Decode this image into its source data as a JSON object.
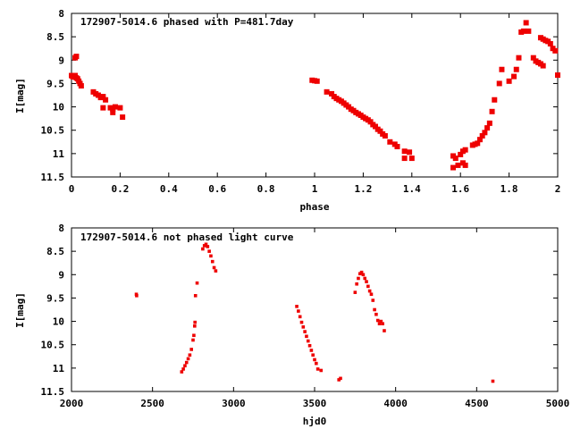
{
  "chart_data": [
    {
      "type": "scatter",
      "title": "172907-5014.6 phased with P=481.7day",
      "xlabel": "phase",
      "ylabel": "I[mag]",
      "xlim": [
        0,
        2
      ],
      "ylim": [
        11.5,
        8
      ],
      "y_inverted": true,
      "xticks": [
        "0",
        "0.2",
        "0.4",
        "0.6",
        "0.8",
        "1",
        "1.2",
        "1.4",
        "1.6",
        "1.8",
        "2"
      ],
      "yticks": [
        "8",
        "8.5",
        "9",
        "9.5",
        "10",
        "10.5",
        "11",
        "11.5"
      ],
      "marker_color": "#ee0000",
      "marker_size": "large",
      "grid": false,
      "legend": "none",
      "points": [
        [
          0.0,
          9.33
        ],
        [
          0.005,
          9.35
        ],
        [
          0.01,
          9.36
        ],
        [
          0.015,
          9.33
        ],
        [
          0.02,
          9.38
        ],
        [
          0.025,
          9.4
        ],
        [
          0.03,
          9.45
        ],
        [
          0.035,
          9.5
        ],
        [
          0.04,
          9.55
        ],
        [
          0.015,
          8.95
        ],
        [
          0.02,
          8.92
        ],
        [
          0.09,
          9.68
        ],
        [
          0.1,
          9.72
        ],
        [
          0.11,
          9.75
        ],
        [
          0.12,
          9.8
        ],
        [
          0.13,
          9.78
        ],
        [
          0.14,
          9.85
        ],
        [
          0.13,
          10.02
        ],
        [
          0.16,
          10.02
        ],
        [
          0.17,
          10.05
        ],
        [
          0.18,
          10.0
        ],
        [
          0.17,
          10.12
        ],
        [
          0.2,
          10.02
        ],
        [
          0.21,
          10.22
        ],
        [
          0.99,
          9.43
        ],
        [
          1.0,
          9.44
        ],
        [
          1.01,
          9.45
        ],
        [
          1.05,
          9.68
        ],
        [
          1.07,
          9.72
        ],
        [
          1.08,
          9.78
        ],
        [
          1.09,
          9.82
        ],
        [
          1.1,
          9.85
        ],
        [
          1.11,
          9.88
        ],
        [
          1.12,
          9.92
        ],
        [
          1.13,
          9.96
        ],
        [
          1.14,
          10.0
        ],
        [
          1.15,
          10.05
        ],
        [
          1.16,
          10.08
        ],
        [
          1.17,
          10.12
        ],
        [
          1.18,
          10.15
        ],
        [
          1.19,
          10.18
        ],
        [
          1.2,
          10.22
        ],
        [
          1.21,
          10.25
        ],
        [
          1.22,
          10.28
        ],
        [
          1.23,
          10.32
        ],
        [
          1.24,
          10.38
        ],
        [
          1.25,
          10.42
        ],
        [
          1.26,
          10.48
        ],
        [
          1.27,
          10.52
        ],
        [
          1.28,
          10.58
        ],
        [
          1.29,
          10.62
        ],
        [
          1.31,
          10.75
        ],
        [
          1.33,
          10.8
        ],
        [
          1.34,
          10.85
        ],
        [
          1.37,
          10.95
        ],
        [
          1.37,
          11.1
        ],
        [
          1.39,
          10.97
        ],
        [
          1.4,
          11.1
        ],
        [
          1.57,
          11.05
        ],
        [
          1.58,
          11.1
        ],
        [
          1.57,
          11.3
        ],
        [
          1.59,
          11.25
        ],
        [
          1.6,
          11.02
        ],
        [
          1.61,
          10.95
        ],
        [
          1.62,
          10.92
        ],
        [
          1.61,
          11.2
        ],
        [
          1.62,
          11.25
        ],
        [
          1.65,
          10.82
        ],
        [
          1.66,
          10.8
        ],
        [
          1.67,
          10.78
        ],
        [
          1.68,
          10.7
        ],
        [
          1.69,
          10.62
        ],
        [
          1.7,
          10.55
        ],
        [
          1.71,
          10.45
        ],
        [
          1.72,
          10.35
        ],
        [
          1.73,
          10.1
        ],
        [
          1.74,
          9.85
        ],
        [
          1.76,
          9.5
        ],
        [
          1.77,
          9.2
        ],
        [
          1.8,
          9.45
        ],
        [
          1.82,
          9.35
        ],
        [
          1.83,
          9.2
        ],
        [
          1.84,
          8.95
        ],
        [
          1.85,
          8.4
        ],
        [
          1.86,
          8.38
        ],
        [
          1.87,
          8.2
        ],
        [
          1.88,
          8.38
        ],
        [
          1.9,
          8.95
        ],
        [
          1.91,
          9.02
        ],
        [
          1.92,
          9.05
        ],
        [
          1.93,
          9.08
        ],
        [
          1.94,
          9.12
        ],
        [
          1.93,
          8.52
        ],
        [
          1.94,
          8.55
        ],
        [
          1.95,
          8.58
        ],
        [
          1.96,
          8.6
        ],
        [
          1.97,
          8.65
        ],
        [
          1.98,
          8.75
        ],
        [
          1.99,
          8.8
        ],
        [
          2.0,
          9.32
        ]
      ]
    },
    {
      "type": "scatter",
      "title": "172907-5014.6 not phased light curve",
      "xlabel": "hjd0",
      "ylabel": "I[mag]",
      "xlim": [
        2000,
        5000
      ],
      "ylim": [
        11.5,
        8
      ],
      "y_inverted": true,
      "xticks": [
        "2000",
        "2500",
        "3000",
        "3500",
        "4000",
        "4500",
        "5000"
      ],
      "yticks": [
        "8",
        "8.5",
        "9",
        "9.5",
        "10",
        "10.5",
        "11",
        "11.5"
      ],
      "marker_color": "#ee0000",
      "marker_size": "small",
      "grid": false,
      "legend": "none",
      "points": [
        [
          2400,
          9.42
        ],
        [
          2402,
          9.45
        ],
        [
          2680,
          11.08
        ],
        [
          2690,
          11.02
        ],
        [
          2700,
          10.95
        ],
        [
          2710,
          10.88
        ],
        [
          2720,
          10.8
        ],
        [
          2730,
          10.72
        ],
        [
          2740,
          10.6
        ],
        [
          2750,
          10.4
        ],
        [
          2755,
          10.3
        ],
        [
          2760,
          10.1
        ],
        [
          2762,
          10.02
        ],
        [
          2765,
          9.45
        ],
        [
          2775,
          9.18
        ],
        [
          2810,
          8.45
        ],
        [
          2820,
          8.38
        ],
        [
          2830,
          8.35
        ],
        [
          2840,
          8.4
        ],
        [
          2850,
          8.5
        ],
        [
          2860,
          8.6
        ],
        [
          2870,
          8.72
        ],
        [
          2880,
          8.85
        ],
        [
          2890,
          8.92
        ],
        [
          3390,
          9.68
        ],
        [
          3400,
          9.78
        ],
        [
          3410,
          9.9
        ],
        [
          3420,
          10.02
        ],
        [
          3430,
          10.12
        ],
        [
          3440,
          10.22
        ],
        [
          3450,
          10.32
        ],
        [
          3460,
          10.42
        ],
        [
          3470,
          10.52
        ],
        [
          3480,
          10.62
        ],
        [
          3490,
          10.72
        ],
        [
          3500,
          10.82
        ],
        [
          3510,
          10.9
        ],
        [
          3520,
          11.02
        ],
        [
          3540,
          11.05
        ],
        [
          3650,
          11.25
        ],
        [
          3660,
          11.22
        ],
        [
          3750,
          9.38
        ],
        [
          3760,
          9.2
        ],
        [
          3770,
          9.08
        ],
        [
          3780,
          8.98
        ],
        [
          3790,
          8.95
        ],
        [
          3800,
          9.0
        ],
        [
          3810,
          9.08
        ],
        [
          3820,
          9.15
        ],
        [
          3830,
          9.25
        ],
        [
          3840,
          9.35
        ],
        [
          3850,
          9.42
        ],
        [
          3860,
          9.55
        ],
        [
          3870,
          9.75
        ],
        [
          3880,
          9.85
        ],
        [
          3890,
          9.98
        ],
        [
          3900,
          10.05
        ],
        [
          3910,
          10.0
        ],
        [
          3920,
          10.05
        ],
        [
          3930,
          10.2
        ],
        [
          4600,
          11.28
        ]
      ]
    }
  ]
}
